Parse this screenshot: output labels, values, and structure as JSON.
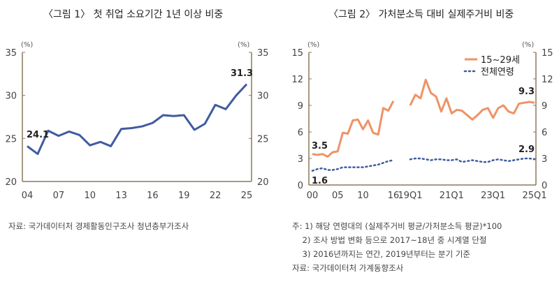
{
  "chart_data": [
    {
      "type": "line",
      "title": "〈그림 1〉 첫 취업 소요기간 1년 이상 비중",
      "unit": "(%)",
      "ylim": [
        20,
        35
      ],
      "yticks": [
        20,
        25,
        30,
        35
      ],
      "x": [
        "04",
        "05",
        "06",
        "07",
        "08",
        "09",
        "10",
        "11",
        "12",
        "13",
        "14",
        "15",
        "16",
        "17",
        "18",
        "19",
        "20",
        "21",
        "22",
        "23",
        "24",
        "25"
      ],
      "xticks": [
        "04",
        "07",
        "10",
        "13",
        "16",
        "19",
        "22",
        "25"
      ],
      "series": [
        {
          "values": [
            24.1,
            23.2,
            25.9,
            25.3,
            25.8,
            25.4,
            24.2,
            24.6,
            24.1,
            26.1,
            26.2,
            26.4,
            26.8,
            27.7,
            27.6,
            27.7,
            26.0,
            26.7,
            28.9,
            28.4,
            30.0,
            31.3
          ],
          "color": "#3f5ba0"
        }
      ],
      "annotations": [
        "24.1",
        "31.3"
      ],
      "source": "자료: 국가데이터처 경제활동인구조사 청년층부가조사"
    },
    {
      "type": "line",
      "title": "〈그림 2〉 가처분소득 대비 실제주거비 비중",
      "unit": "(%)",
      "ylim": [
        0,
        15
      ],
      "yticks": [
        0,
        3,
        6,
        9,
        12,
        15
      ],
      "x_annual": [
        "00",
        "01",
        "02",
        "03",
        "04",
        "05",
        "06",
        "07",
        "08",
        "09",
        "10",
        "11",
        "12",
        "13",
        "14",
        "15",
        "16"
      ],
      "x_quarterly": [
        "19Q1",
        "19Q2",
        "19Q3",
        "19Q4",
        "20Q1",
        "20Q2",
        "20Q3",
        "20Q4",
        "21Q1",
        "21Q2",
        "21Q3",
        "21Q4",
        "22Q1",
        "22Q2",
        "22Q3",
        "22Q4",
        "23Q1",
        "23Q2",
        "23Q3",
        "23Q4",
        "24Q1",
        "24Q2",
        "24Q3",
        "24Q4",
        "25Q1"
      ],
      "xticks": [
        "00",
        "05",
        "10",
        "16",
        "19Q1",
        "21Q1",
        "23Q1",
        "25Q1"
      ],
      "legend": "top-right",
      "series": [
        {
          "name": "15~29세",
          "color": "#ee9366",
          "style": "solid",
          "annual": [
            3.5,
            3.4,
            3.5,
            3.2,
            3.7,
            3.8,
            5.9,
            5.8,
            7.3,
            7.4,
            6.3,
            7.3,
            5.9,
            5.7,
            8.7,
            8.4,
            9.5
          ],
          "quarterly": [
            9.0,
            10.2,
            9.8,
            11.9,
            10.4,
            10.0,
            8.3,
            9.8,
            8.1,
            8.5,
            8.4,
            7.9,
            7.4,
            7.9,
            8.5,
            8.7,
            7.6,
            8.7,
            9.0,
            8.3,
            8.1,
            9.2,
            9.3,
            9.4,
            9.3
          ]
        },
        {
          "name": "전체연령",
          "color": "#3f5ba0",
          "style": "dotted",
          "annual": [
            1.6,
            1.8,
            1.9,
            1.7,
            1.7,
            1.8,
            2.0,
            2.0,
            2.0,
            2.0,
            2.0,
            2.1,
            2.2,
            2.3,
            2.5,
            2.7,
            2.8
          ],
          "quarterly": [
            2.9,
            3.0,
            3.0,
            2.9,
            2.8,
            2.9,
            2.9,
            2.8,
            2.8,
            2.9,
            2.6,
            2.7,
            2.8,
            2.7,
            2.6,
            2.6,
            2.8,
            2.9,
            2.8,
            2.7,
            2.8,
            2.9,
            3.0,
            3.0,
            2.9
          ]
        }
      ],
      "annotations": [
        "3.5",
        "1.6",
        "9.3",
        "2.9"
      ],
      "notes": [
        "주: 1) 해당 연령대의 (실제주거비 평균/가처분소득 평균)*100",
        "    2) 조사 방법 변화 등으로 2017~18년 중 시계열 단절",
        "    3) 2016년까지는 연간, 2019년부터는 분기 기준"
      ],
      "source": "자료: 국가데이터처 가계동향조사"
    }
  ]
}
